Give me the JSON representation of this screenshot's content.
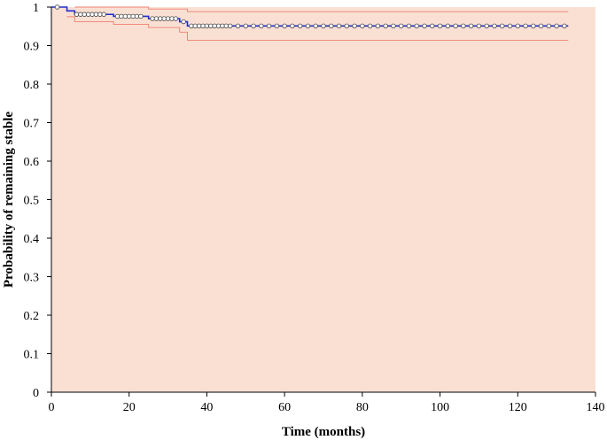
{
  "chart_data": {
    "type": "line",
    "title": "",
    "xlabel": "Time (months)",
    "ylabel": "Probability of remaining stable",
    "xlim": [
      0,
      140
    ],
    "ylim": [
      0,
      1
    ],
    "x_ticks": [
      0,
      20,
      40,
      60,
      80,
      100,
      120,
      140
    ],
    "y_ticks": [
      0,
      0.1,
      0.2,
      0.3,
      0.4,
      0.5,
      0.6,
      0.7,
      0.8,
      0.9,
      1
    ],
    "grid": false,
    "legend": "none",
    "colors": {
      "plot_background": "#f9e0d3",
      "survival_line": "#1f2fd0",
      "confidence_band": "#f07f70",
      "censor_marker_fill": "#ffffff",
      "censor_marker_stroke": "#444444",
      "axis": "#000000"
    },
    "series": [
      {
        "role": "survival-estimate",
        "step_points": [
          [
            0,
            1.0
          ],
          [
            4,
            1.0
          ],
          [
            4,
            0.99
          ],
          [
            6,
            0.99
          ],
          [
            6,
            0.981
          ],
          [
            16,
            0.981
          ],
          [
            16,
            0.976
          ],
          [
            25,
            0.976
          ],
          [
            25,
            0.97
          ],
          [
            33,
            0.97
          ],
          [
            33,
            0.962
          ],
          [
            35,
            0.962
          ],
          [
            35,
            0.951
          ],
          [
            133,
            0.951
          ]
        ],
        "censored_times": [
          1.5,
          6.5,
          7.5,
          8.5,
          9.5,
          10.5,
          11.5,
          12.5,
          13.5,
          17,
          18,
          19,
          20,
          21,
          22,
          23,
          26,
          27,
          28,
          29,
          30,
          31,
          32,
          34,
          36,
          37,
          38,
          39,
          40,
          41,
          42,
          43,
          44,
          45,
          46,
          48,
          50,
          52,
          54,
          56,
          58,
          60,
          62,
          64,
          66,
          68,
          70,
          72,
          74,
          76,
          78,
          80,
          82,
          84,
          86,
          88,
          90,
          92,
          94,
          96,
          98,
          100,
          102,
          104,
          106,
          108,
          110,
          112,
          114,
          116,
          118,
          120,
          122,
          124,
          126,
          128,
          130,
          132
        ]
      },
      {
        "role": "upper-confidence-limit",
        "step_points": [
          [
            6,
            1.0
          ],
          [
            25,
            1.0
          ],
          [
            25,
            0.995
          ],
          [
            35,
            0.995
          ],
          [
            35,
            0.988
          ],
          [
            133,
            0.988
          ]
        ]
      },
      {
        "role": "lower-confidence-limit",
        "step_points": [
          [
            4,
            0.975
          ],
          [
            6,
            0.975
          ],
          [
            6,
            0.962
          ],
          [
            16,
            0.962
          ],
          [
            16,
            0.955
          ],
          [
            25,
            0.955
          ],
          [
            25,
            0.947
          ],
          [
            33,
            0.947
          ],
          [
            33,
            0.935
          ],
          [
            35,
            0.935
          ],
          [
            35,
            0.914
          ],
          [
            133,
            0.914
          ]
        ]
      }
    ]
  }
}
